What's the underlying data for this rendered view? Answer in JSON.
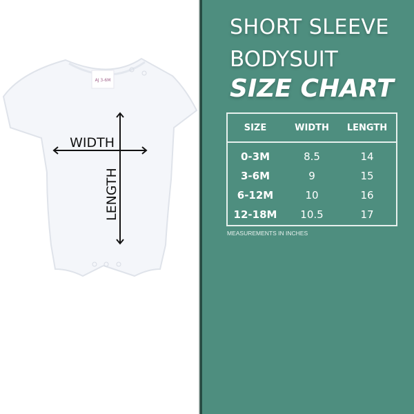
{
  "title": {
    "line1": "SHORT SLEEVE",
    "line2": "BODYSUIT",
    "line3": "SIZE CHART"
  },
  "image": {
    "width_label": "WIDTH",
    "length_label": "LENGTH",
    "tag_text": "AJ 3-6M"
  },
  "table": {
    "headers": [
      "SIZE",
      "WIDTH",
      "LENGTH"
    ],
    "rows": [
      {
        "size": "0-3M",
        "width": "8.5",
        "length": "14"
      },
      {
        "size": "3-6M",
        "width": "9",
        "length": "15"
      },
      {
        "size": "6-12M",
        "width": "10",
        "length": "16"
      },
      {
        "size": "12-18M",
        "width": "10.5",
        "length": "17"
      }
    ]
  },
  "note": "MEASUREMENTS IN INCHES",
  "colors": {
    "panel": "#4e8e7f",
    "text": "#ffffff"
  }
}
